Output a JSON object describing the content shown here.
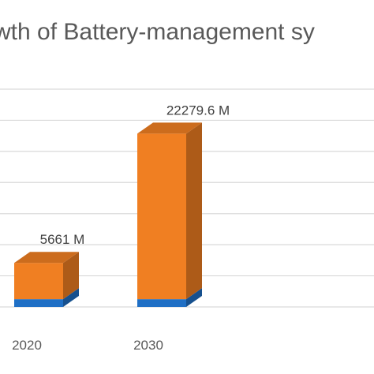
{
  "chart_data": {
    "type": "bar",
    "title": "wth of Battery-management sy",
    "categories": [
      "2020",
      "2030"
    ],
    "series": [
      {
        "values": [
          1000,
          1000
        ],
        "color": "#1f6fc5"
      },
      {
        "values": [
          4661,
          21279.6
        ],
        "color": "#f07f22"
      }
    ],
    "data_labels": [
      "5661 M",
      "22279.6 M"
    ],
    "ylim": [
      0,
      28000
    ],
    "grid": true,
    "style": "3d-stacked-column"
  }
}
